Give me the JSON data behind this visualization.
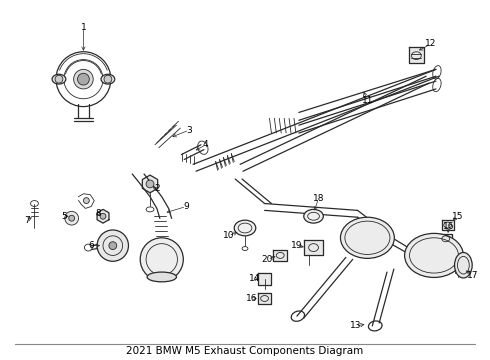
{
  "title": "2021 BMW M5 Exhaust Components Diagram",
  "bg_color": "#ffffff",
  "line_color": "#2a2a2a",
  "label_color": "#000000",
  "label_fontsize": 6.5,
  "title_fontsize": 7.5,
  "fig_w": 4.9,
  "fig_h": 3.6,
  "dpi": 100
}
